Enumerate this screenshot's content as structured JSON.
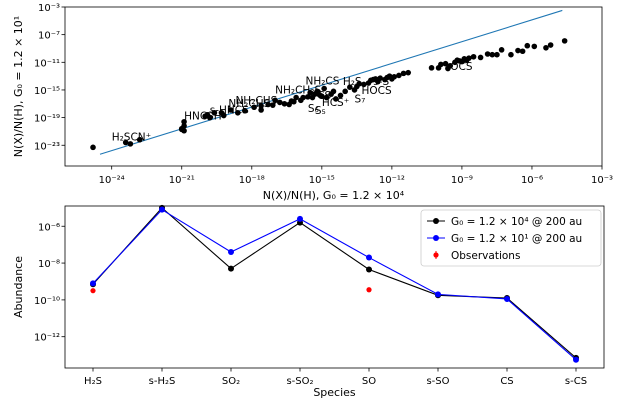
{
  "chart_data": [
    {
      "type": "scatter",
      "xlabel": "N(X)/N(H), G₀ = 1.2 × 10⁴",
      "ylabel": "N(X)/N(H), G₀ = 1.2 × 10¹",
      "xscale": "log",
      "yscale": "log",
      "xlim_exp": [
        -26,
        -3
      ],
      "ylim_exp": [
        -26,
        -3
      ],
      "x_ticks": [
        {
          "exp": -24,
          "label": "10⁻²⁴"
        },
        {
          "exp": -21,
          "label": "10⁻²¹"
        },
        {
          "exp": -18,
          "label": "10⁻¹⁸"
        },
        {
          "exp": -15,
          "label": "10⁻¹⁵"
        },
        {
          "exp": -12,
          "label": "10⁻¹²"
        },
        {
          "exp": -9,
          "label": "10⁻⁹"
        },
        {
          "exp": -6,
          "label": "10⁻⁶"
        },
        {
          "exp": -3,
          "label": "10⁻³"
        }
      ],
      "y_ticks": [
        {
          "exp": -23,
          "label": "10⁻²³"
        },
        {
          "exp": -19,
          "label": "10⁻¹⁹"
        },
        {
          "exp": -15,
          "label": "10⁻¹⁵"
        },
        {
          "exp": -11,
          "label": "10⁻¹¹"
        },
        {
          "exp": -7,
          "label": "10⁻⁷"
        },
        {
          "exp": -3,
          "label": "10⁻³"
        }
      ],
      "line_exp": [
        [
          -24.5,
          -24.3
        ],
        [
          -4.7,
          -3.5
        ]
      ],
      "line_color": "#1f77b4",
      "marker_color": "#000000",
      "points_exp": [
        [
          -24.8,
          -23.3
        ],
        [
          -23.4,
          -22.6
        ],
        [
          -23.2,
          -22.8
        ],
        [
          -22.8,
          -22.2
        ],
        [
          -21.0,
          -20.7
        ],
        [
          -21.0,
          -20.6
        ],
        [
          -20.9,
          -20.9
        ],
        [
          -20.9,
          -20.2
        ],
        [
          -20.9,
          -19.6
        ],
        [
          -20.0,
          -18.8
        ],
        [
          -19.9,
          -18.6
        ],
        [
          -19.8,
          -19.0
        ],
        [
          -19.6,
          -18.3
        ],
        [
          -19.3,
          -18.3
        ],
        [
          -19.2,
          -18.7
        ],
        [
          -18.9,
          -17.9
        ],
        [
          -18.6,
          -18.3
        ],
        [
          -18.3,
          -18.0
        ],
        [
          -17.9,
          -17.5
        ],
        [
          -17.6,
          -17.3
        ],
        [
          -17.6,
          -17.9
        ],
        [
          -17.3,
          -17.1
        ],
        [
          -17.1,
          -17.2
        ],
        [
          -17.0,
          -16.5
        ],
        [
          -16.8,
          -16.8
        ],
        [
          -16.6,
          -17.0
        ],
        [
          -16.4,
          -17.1
        ],
        [
          -16.3,
          -16.6
        ],
        [
          -16.2,
          -16.7
        ],
        [
          -16.1,
          -16.1
        ],
        [
          -15.9,
          -16.5
        ],
        [
          -15.8,
          -16.1
        ],
        [
          -15.6,
          -16.0
        ],
        [
          -15.5,
          -15.4
        ],
        [
          -15.4,
          -16.1
        ],
        [
          -15.3,
          -15.6
        ],
        [
          -15.2,
          -15.2
        ],
        [
          -15.1,
          -15.7
        ],
        [
          -15.0,
          -15.9
        ],
        [
          -14.9,
          -14.8
        ],
        [
          -14.8,
          -16.1
        ],
        [
          -14.6,
          -15.6
        ],
        [
          -14.5,
          -15.2
        ],
        [
          -14.4,
          -16.3
        ],
        [
          -14.2,
          -15.8
        ],
        [
          -14.0,
          -15.2
        ],
        [
          -13.8,
          -14.6
        ],
        [
          -13.6,
          -15.0
        ],
        [
          -13.5,
          -14.5
        ],
        [
          -13.4,
          -14.1
        ],
        [
          -13.2,
          -14.2
        ],
        [
          -13.0,
          -14.0
        ],
        [
          -12.9,
          -13.6
        ],
        [
          -12.8,
          -13.5
        ],
        [
          -12.7,
          -13.4
        ],
        [
          -12.6,
          -13.8
        ],
        [
          -12.5,
          -13.3
        ],
        [
          -12.3,
          -13.5
        ],
        [
          -12.2,
          -13.2
        ],
        [
          -12.1,
          -13.0
        ],
        [
          -12.0,
          -13.4
        ],
        [
          -11.9,
          -13.1
        ],
        [
          -11.7,
          -12.9
        ],
        [
          -11.5,
          -12.6
        ],
        [
          -11.3,
          -12.5
        ],
        [
          -10.3,
          -11.8
        ],
        [
          -10.0,
          -11.8
        ],
        [
          -9.9,
          -11.3
        ],
        [
          -9.7,
          -11.2
        ],
        [
          -9.6,
          -11.9
        ],
        [
          -9.5,
          -11.5
        ],
        [
          -9.3,
          -11.0
        ],
        [
          -9.2,
          -10.7
        ],
        [
          -9.1,
          -10.8
        ],
        [
          -9.0,
          -10.9
        ],
        [
          -8.9,
          -10.5
        ],
        [
          -8.8,
          -10.7
        ],
        [
          -8.7,
          -10.4
        ],
        [
          -8.5,
          -10.2
        ],
        [
          -8.2,
          -10.3
        ],
        [
          -7.9,
          -9.8
        ],
        [
          -7.7,
          -9.9
        ],
        [
          -7.5,
          -9.9
        ],
        [
          -7.3,
          -9.2
        ],
        [
          -6.9,
          -9.9
        ],
        [
          -6.6,
          -9.3
        ],
        [
          -6.4,
          -9.4
        ],
        [
          -6.2,
          -8.6
        ],
        [
          -5.9,
          -8.7
        ],
        [
          -5.4,
          -8.9
        ],
        [
          -5.2,
          -8.5
        ],
        [
          -4.6,
          -7.9
        ]
      ],
      "labels": [
        {
          "text": "H₂SCN⁺",
          "x_exp": -24.0,
          "y_exp": -22.3
        },
        {
          "text": "HNCSH⁺",
          "x_exp": -20.9,
          "y_exp": -19.3
        },
        {
          "text": "s-HNCS",
          "x_exp": -19.8,
          "y_exp": -18.4
        },
        {
          "text": "NH₂CHS",
          "x_exp": -19.0,
          "y_exp": -17.5
        },
        {
          "text": "NH₂CHS",
          "x_exp": -18.7,
          "y_exp": -17.0
        },
        {
          "text": "NH₂CH₂S",
          "x_exp": -17.0,
          "y_exp": -15.5
        },
        {
          "text": "NH₂CS",
          "x_exp": -15.7,
          "y_exp": -14.2
        },
        {
          "text": "H₂S",
          "x_exp": -14.1,
          "y_exp": -14.3
        },
        {
          "text": "CS",
          "x_exp": -15.2,
          "y_exp": -16.3
        },
        {
          "text": "HCS⁺",
          "x_exp": -15.0,
          "y_exp": -17.3
        },
        {
          "text": "S₇",
          "x_exp": -13.6,
          "y_exp": -16.8
        },
        {
          "text": "S₆",
          "x_exp": -15.6,
          "y_exp": -18.2
        },
        {
          "text": "S₅",
          "x_exp": -15.3,
          "y_exp": -18.5
        },
        {
          "text": "HOCS",
          "x_exp": -13.3,
          "y_exp": -15.6
        },
        {
          "text": "s-S",
          "x_exp": -12.8,
          "y_exp": -14.3
        },
        {
          "text": "OCS",
          "x_exp": -9.5,
          "y_exp": -12.1
        }
      ]
    },
    {
      "type": "line",
      "categories": [
        "H₂S",
        "s-H₂S",
        "SO₂",
        "s-SO₂",
        "SO",
        "s-SO",
        "CS",
        "s-CS"
      ],
      "xlabel": "Species",
      "ylabel": "Abundance",
      "yscale": "log",
      "ylim_exp": [
        -13.7,
        -4.9
      ],
      "y_ticks": [
        {
          "exp": -6,
          "label": "10⁻⁶"
        },
        {
          "exp": -8,
          "label": "10⁻⁸"
        },
        {
          "exp": -10,
          "label": "10⁻¹⁰"
        },
        {
          "exp": -12,
          "label": "10⁻¹²"
        }
      ],
      "series": [
        {
          "name": "G₀ = 1.2 × 10⁴ @ 200 au",
          "color": "#000000",
          "values_exp": [
            -9.15,
            -5.0,
            -8.3,
            -5.8,
            -8.35,
            -9.75,
            -9.9,
            -13.15
          ]
        },
        {
          "name": "G₀ = 1.2 × 10¹ @ 200 au",
          "color": "#0000ff",
          "values_exp": [
            -9.1,
            -5.1,
            -7.4,
            -5.6,
            -7.7,
            -9.7,
            -9.95,
            -13.25
          ]
        }
      ],
      "observations": {
        "name": "Observations",
        "color": "#ff0000",
        "points": [
          {
            "category_index": 0,
            "exp": -9.5
          },
          {
            "category_index": 4,
            "exp": -9.45
          }
        ]
      },
      "legend_position": "top-right"
    }
  ]
}
